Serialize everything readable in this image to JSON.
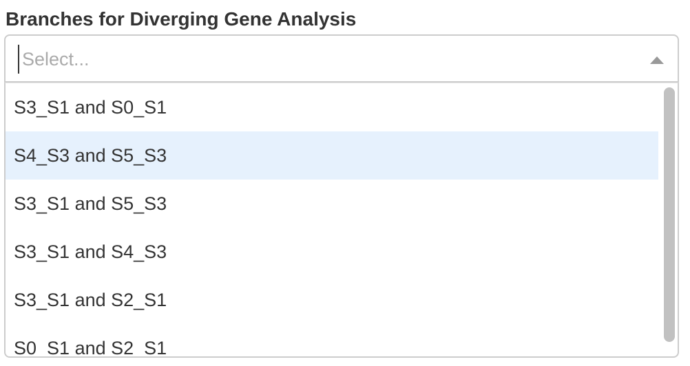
{
  "field": {
    "label": "Branches for Diverging Gene Analysis",
    "placeholder": "Select...",
    "value": ""
  },
  "icons": {
    "dropdown_arrow": "triangle-up-icon"
  },
  "colors": {
    "highlight": "#e6f1fd",
    "border": "#cccccc",
    "placeholder": "#aaaaaa",
    "text": "#333333"
  },
  "options": [
    {
      "label": "S3_S1 and S0_S1"
    },
    {
      "label": "S4_S3 and S5_S3"
    },
    {
      "label": "S3_S1 and S5_S3"
    },
    {
      "label": "S3_S1 and S4_S3"
    },
    {
      "label": "S3_S1 and S2_S1"
    },
    {
      "label": "S0_S1 and S2_S1"
    }
  ]
}
